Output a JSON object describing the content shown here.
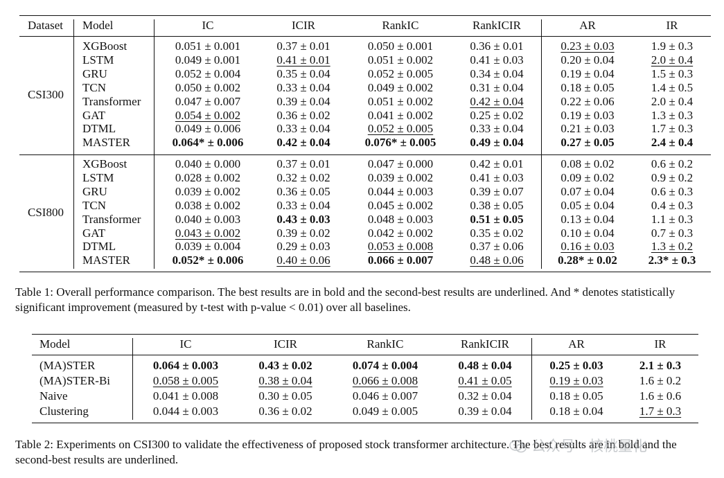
{
  "table1": {
    "headers": [
      "Dataset",
      "Model",
      "IC",
      "ICIR",
      "RankIC",
      "RankICIR",
      "AR",
      "IR"
    ],
    "groups": [
      {
        "dataset": "CSI300",
        "rows": [
          {
            "model": "XGBoost",
            "cells": [
              {
                "v": "0.051 ± 0.001"
              },
              {
                "v": "0.37 ± 0.01"
              },
              {
                "v": "0.050 ± 0.001"
              },
              {
                "v": "0.36 ± 0.01"
              },
              {
                "v": "0.23 ± 0.03",
                "s": "u"
              },
              {
                "v": "1.9 ± 0.3"
              }
            ]
          },
          {
            "model": "LSTM",
            "cells": [
              {
                "v": "0.049 ± 0.001"
              },
              {
                "v": "0.41 ± 0.01",
                "s": "u"
              },
              {
                "v": "0.051 ± 0.002"
              },
              {
                "v": "0.41 ± 0.03"
              },
              {
                "v": "0.20 ± 0.04"
              },
              {
                "v": "2.0 ± 0.4",
                "s": "u"
              }
            ]
          },
          {
            "model": "GRU",
            "cells": [
              {
                "v": "0.052 ± 0.004"
              },
              {
                "v": "0.35 ± 0.04"
              },
              {
                "v": "0.052 ± 0.005"
              },
              {
                "v": "0.34 ± 0.04"
              },
              {
                "v": "0.19 ± 0.04"
              },
              {
                "v": "1.5 ± 0.3"
              }
            ]
          },
          {
            "model": "TCN",
            "cells": [
              {
                "v": "0.050 ± 0.002"
              },
              {
                "v": "0.33 ± 0.04"
              },
              {
                "v": "0.049 ± 0.002"
              },
              {
                "v": "0.31 ± 0.04"
              },
              {
                "v": "0.18 ± 0.05"
              },
              {
                "v": "1.4 ± 0.5"
              }
            ]
          },
          {
            "model": "Transformer",
            "cells": [
              {
                "v": "0.047 ± 0.007"
              },
              {
                "v": "0.39 ± 0.04"
              },
              {
                "v": "0.051 ± 0.002"
              },
              {
                "v": "0.42 ± 0.04",
                "s": "u"
              },
              {
                "v": "0.22 ± 0.06"
              },
              {
                "v": "2.0 ± 0.4"
              }
            ]
          },
          {
            "model": "GAT",
            "cells": [
              {
                "v": "0.054 ± 0.002",
                "s": "u"
              },
              {
                "v": "0.36 ± 0.02"
              },
              {
                "v": "0.041 ± 0.002"
              },
              {
                "v": "0.25 ± 0.02"
              },
              {
                "v": "0.19 ± 0.03"
              },
              {
                "v": "1.3 ± 0.3"
              }
            ]
          },
          {
            "model": "DTML",
            "cells": [
              {
                "v": "0.049 ± 0.006"
              },
              {
                "v": "0.33 ± 0.04"
              },
              {
                "v": "0.052 ± 0.005",
                "s": "u"
              },
              {
                "v": "0.33 ± 0.04"
              },
              {
                "v": "0.21 ± 0.03"
              },
              {
                "v": "1.7 ± 0.3"
              }
            ]
          },
          {
            "model": "MASTER",
            "cells": [
              {
                "v": "0.064* ± 0.006",
                "s": "b"
              },
              {
                "v": "0.42 ± 0.04",
                "s": "b"
              },
              {
                "v": "0.076* ± 0.005",
                "s": "b"
              },
              {
                "v": "0.49 ± 0.04",
                "s": "b"
              },
              {
                "v": "0.27 ± 0.05",
                "s": "b"
              },
              {
                "v": "2.4 ± 0.4",
                "s": "b"
              }
            ]
          }
        ]
      },
      {
        "dataset": "CSI800",
        "rows": [
          {
            "model": "XGBoost",
            "cells": [
              {
                "v": "0.040 ± 0.000"
              },
              {
                "v": "0.37 ± 0.01"
              },
              {
                "v": "0.047 ± 0.000"
              },
              {
                "v": "0.42 ± 0.01"
              },
              {
                "v": "0.08 ± 0.02"
              },
              {
                "v": "0.6 ± 0.2"
              }
            ]
          },
          {
            "model": "LSTM",
            "cells": [
              {
                "v": "0.028 ± 0.002"
              },
              {
                "v": "0.32 ± 0.02"
              },
              {
                "v": "0.039 ± 0.002"
              },
              {
                "v": "0.41 ± 0.03"
              },
              {
                "v": "0.09 ± 0.02"
              },
              {
                "v": "0.9 ± 0.2"
              }
            ]
          },
          {
            "model": "GRU",
            "cells": [
              {
                "v": "0.039 ± 0.002"
              },
              {
                "v": "0.36 ± 0.05"
              },
              {
                "v": "0.044 ± 0.003"
              },
              {
                "v": "0.39 ± 0.07"
              },
              {
                "v": "0.07 ± 0.04"
              },
              {
                "v": "0.6 ± 0.3"
              }
            ]
          },
          {
            "model": "TCN",
            "cells": [
              {
                "v": "0.038 ± 0.002"
              },
              {
                "v": "0.33 ± 0.04"
              },
              {
                "v": "0.045 ± 0.002"
              },
              {
                "v": "0.38 ± 0.05"
              },
              {
                "v": "0.05 ± 0.04"
              },
              {
                "v": "0.4 ± 0.3"
              }
            ]
          },
          {
            "model": "Transformer",
            "cells": [
              {
                "v": "0.040 ± 0.003"
              },
              {
                "v": "0.43 ± 0.03",
                "s": "b"
              },
              {
                "v": "0.048 ± 0.003"
              },
              {
                "v": "0.51 ± 0.05",
                "s": "b"
              },
              {
                "v": "0.13 ± 0.04"
              },
              {
                "v": "1.1 ± 0.3"
              }
            ]
          },
          {
            "model": "GAT",
            "cells": [
              {
                "v": "0.043 ± 0.002",
                "s": "u"
              },
              {
                "v": "0.39 ± 0.02"
              },
              {
                "v": "0.042 ± 0.002"
              },
              {
                "v": "0.35 ± 0.02"
              },
              {
                "v": "0.10 ± 0.04"
              },
              {
                "v": "0.7 ± 0.3"
              }
            ]
          },
          {
            "model": "DTML",
            "cells": [
              {
                "v": "0.039 ± 0.004"
              },
              {
                "v": "0.29 ± 0.03"
              },
              {
                "v": "0.053 ± 0.008",
                "s": "u"
              },
              {
                "v": "0.37 ± 0.06"
              },
              {
                "v": "0.16 ± 0.03",
                "s": "u"
              },
              {
                "v": "1.3 ± 0.2",
                "s": "u"
              }
            ]
          },
          {
            "model": "MASTER",
            "cells": [
              {
                "v": "0.052* ± 0.006",
                "s": "b"
              },
              {
                "v": "0.40 ± 0.06",
                "s": "u"
              },
              {
                "v": "0.066 ± 0.007",
                "s": "b"
              },
              {
                "v": "0.48 ± 0.06",
                "s": "u"
              },
              {
                "v": "0.28* ± 0.02",
                "s": "b"
              },
              {
                "v": "2.3* ± 0.3",
                "s": "b"
              }
            ]
          }
        ]
      }
    ],
    "caption": "Table 1: Overall performance comparison. The best results are in bold and the second-best results are underlined. And * denotes statistically significant improvement (measured by t-test with p-value < 0.01) over all baselines."
  },
  "table2": {
    "headers": [
      "Model",
      "IC",
      "ICIR",
      "RankIC",
      "RankICIR",
      "AR",
      "IR"
    ],
    "rows": [
      {
        "model": "(MA)STER",
        "cells": [
          {
            "v": "0.064 ± 0.003",
            "s": "b"
          },
          {
            "v": "0.43 ± 0.02",
            "s": "b"
          },
          {
            "v": "0.074 ± 0.004",
            "s": "b"
          },
          {
            "v": "0.48 ± 0.04",
            "s": "b"
          },
          {
            "v": "0.25 ± 0.03",
            "s": "b"
          },
          {
            "v": "2.1 ± 0.3",
            "s": "b"
          }
        ]
      },
      {
        "model": "(MA)STER-Bi",
        "cells": [
          {
            "v": "0.058 ± 0.005",
            "s": "u"
          },
          {
            "v": "0.38 ± 0.04",
            "s": "u"
          },
          {
            "v": "0.066 ± 0.008",
            "s": "u"
          },
          {
            "v": "0.41 ± 0.05",
            "s": "u"
          },
          {
            "v": "0.19 ± 0.03",
            "s": "u"
          },
          {
            "v": "1.6 ± 0.2"
          }
        ]
      },
      {
        "model": "Naive",
        "cells": [
          {
            "v": "0.041 ± 0.008"
          },
          {
            "v": "0.30 ± 0.05"
          },
          {
            "v": "0.046 ± 0.007"
          },
          {
            "v": "0.32 ± 0.04"
          },
          {
            "v": "0.18 ± 0.05"
          },
          {
            "v": "1.6 ± 0.6"
          }
        ]
      },
      {
        "model": "Clustering",
        "cells": [
          {
            "v": "0.044 ± 0.003"
          },
          {
            "v": "0.36 ± 0.02"
          },
          {
            "v": "0.049 ± 0.005"
          },
          {
            "v": "0.39 ± 0.04"
          },
          {
            "v": "0.18 ± 0.04"
          },
          {
            "v": "1.7 ± 0.3",
            "s": "u"
          }
        ]
      }
    ],
    "caption": "Table 2: Experiments on CSI300 to validate the effectiveness of proposed stock transformer architecture. The best results are in bold and the second-best results are underlined."
  },
  "watermark": "公众号 · 核桃量化"
}
